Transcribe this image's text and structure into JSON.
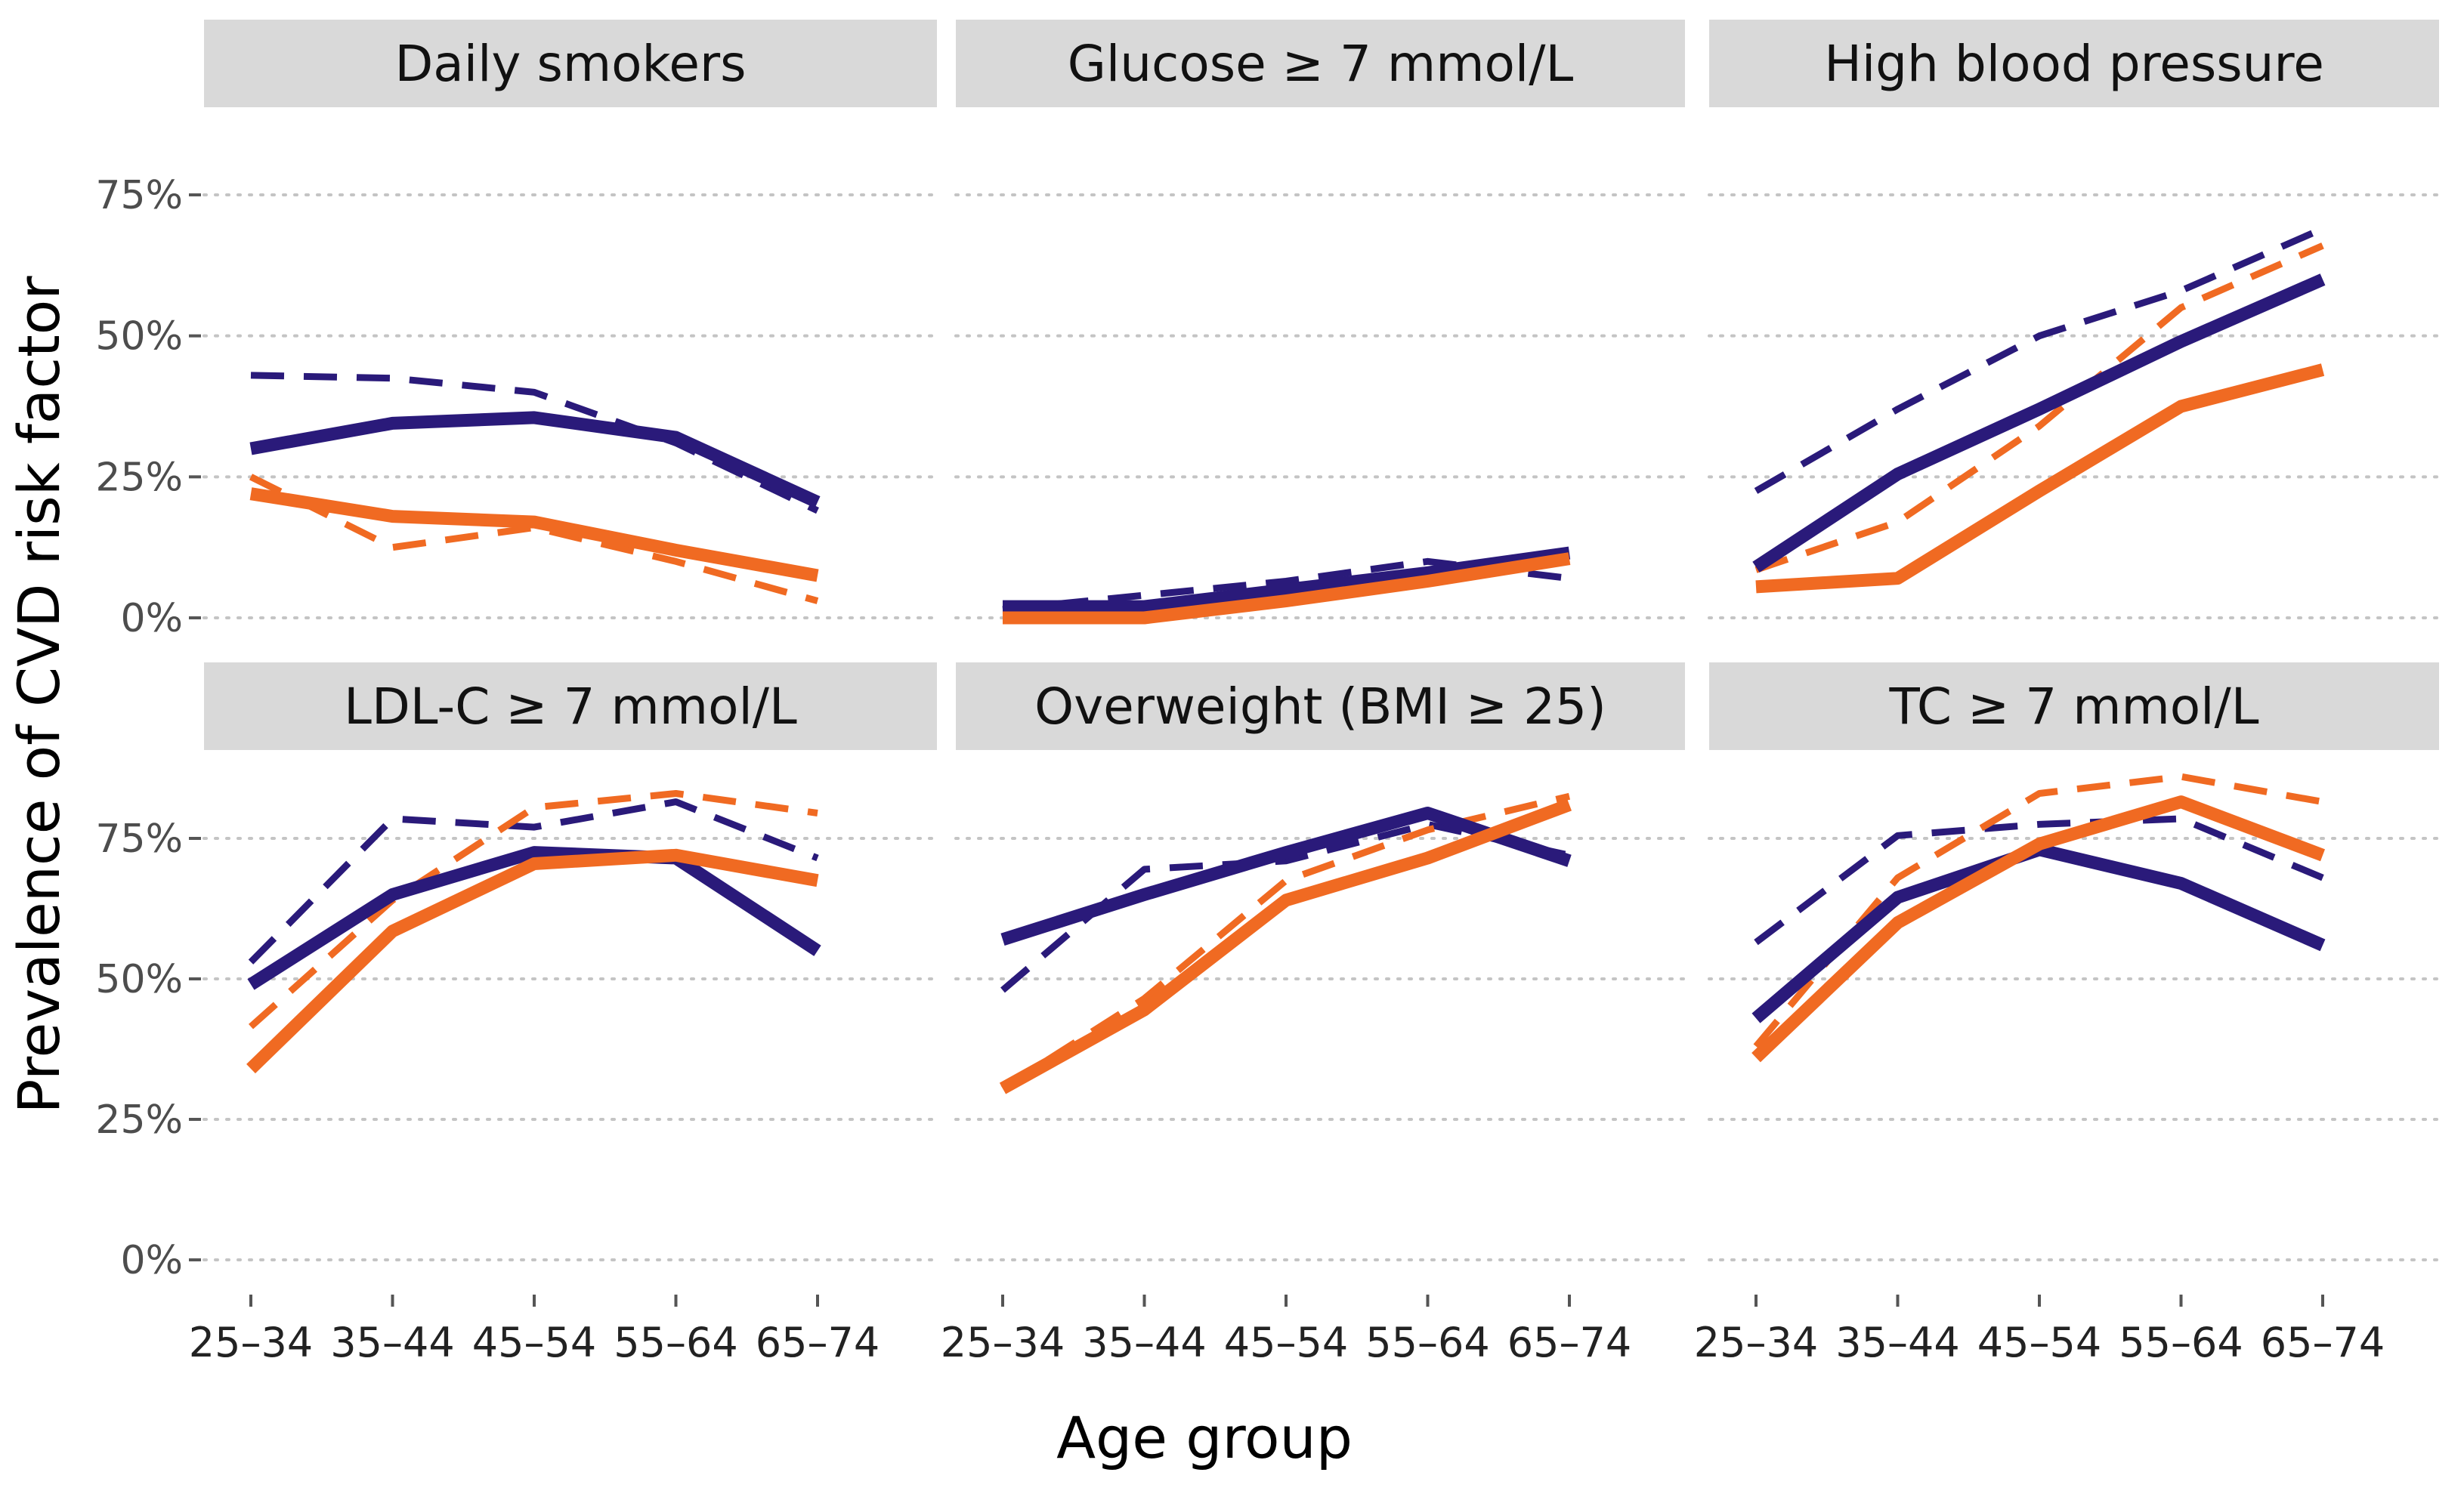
{
  "chart_data": {
    "type": "line",
    "xlabel": "Age group",
    "ylabel": "Prevalence of CVD risk factor",
    "categories": [
      "25–34",
      "35–44",
      "45–54",
      "55–64",
      "65–74"
    ],
    "y_ticks": [
      "0%",
      "25%",
      "50%",
      "75%"
    ],
    "y_tick_values": [
      0,
      25,
      50,
      75
    ],
    "ylim": [
      -8,
      82
    ],
    "grid": "horizontal dotted",
    "colors": {
      "dark": "#2a1a7a",
      "orange": "#f06a22",
      "strip": "#d9d9d9"
    },
    "panels": [
      {
        "title": "Daily smokers",
        "series": [
          {
            "name": "dark-solid",
            "color": "dark",
            "style": "solid",
            "values": [
              30,
              34.5,
              35.5,
              32,
              20.5
            ]
          },
          {
            "name": "dark-dashed",
            "color": "dark",
            "style": "dashed",
            "values": [
              43,
              42.5,
              40,
              31,
              19
            ]
          },
          {
            "name": "orange-solid",
            "color": "orange",
            "style": "solid",
            "values": [
              22,
              18,
              17,
              12,
              7.5
            ]
          },
          {
            "name": "orange-dashed",
            "color": "orange",
            "style": "dashed",
            "values": [
              25,
              12.5,
              16,
              10,
              3
            ]
          }
        ]
      },
      {
        "title": "Glucose ≥ 7 mmol/L",
        "series": [
          {
            "name": "dark-solid",
            "color": "dark",
            "style": "solid",
            "values": [
              2,
              2,
              5,
              8,
              11.5
            ]
          },
          {
            "name": "dark-dashed",
            "color": "dark",
            "style": "dashed",
            "values": [
              1.5,
              4,
              6.5,
              10,
              7
            ]
          },
          {
            "name": "orange-solid",
            "color": "orange",
            "style": "solid",
            "values": [
              0,
              0,
              3,
              6.5,
              10.5
            ]
          },
          {
            "name": "orange-dashed",
            "color": "orange",
            "style": "dashed",
            "values": [
              0.5,
              1,
              3.5,
              7.5,
              10
            ]
          }
        ]
      },
      {
        "title": "High blood pressure",
        "series": [
          {
            "name": "dark-solid",
            "color": "dark",
            "style": "solid",
            "values": [
              9,
              25.5,
              37,
              49,
              60
            ]
          },
          {
            "name": "dark-dashed",
            "color": "dark",
            "style": "dashed",
            "values": [
              22.5,
              37,
              50,
              58,
              69
            ]
          },
          {
            "name": "orange-solid",
            "color": "orange",
            "style": "solid",
            "values": [
              5.5,
              7,
              22.5,
              37.5,
              44
            ]
          },
          {
            "name": "orange-dashed",
            "color": "orange",
            "style": "dashed",
            "values": [
              8.5,
              17,
              34,
              55,
              66
            ]
          }
        ]
      },
      {
        "title": "LDL-C ≥ 7 mmol/L",
        "series": [
          {
            "name": "dark-solid",
            "color": "dark",
            "style": "solid",
            "values": [
              49,
              65,
              72.5,
              71.5,
              55
            ]
          },
          {
            "name": "dark-dashed",
            "color": "dark",
            "style": "dashed",
            "values": [
              53,
              78.5,
              77,
              81.5,
              71.5
            ]
          },
          {
            "name": "orange-solid",
            "color": "orange",
            "style": "solid",
            "values": [
              34,
              58.5,
              70.5,
              72,
              67.5
            ]
          },
          {
            "name": "orange-dashed",
            "color": "orange",
            "style": "dashed",
            "values": [
              41.5,
              64,
              80.5,
              83,
              79.5
            ]
          }
        ]
      },
      {
        "title": "Overweight (BMI ≥ 25)",
        "series": [
          {
            "name": "dark-solid",
            "color": "dark",
            "style": "solid",
            "values": [
              57,
              65,
              72.5,
              79.5,
              71
            ]
          },
          {
            "name": "dark-dashed",
            "color": "dark",
            "style": "dashed",
            "values": [
              48,
              69.5,
              71,
              77.5,
              72
            ]
          },
          {
            "name": "orange-solid",
            "color": "orange",
            "style": "solid",
            "values": [
              30.5,
              44.5,
              64,
              71.5,
              81
            ]
          },
          {
            "name": "orange-dashed",
            "color": "orange",
            "style": "dashed",
            "values": [
              30.5,
              46.5,
              67.5,
              76.5,
              82.5
            ]
          }
        ]
      },
      {
        "title": "TC ≥ 7 mmol/L",
        "series": [
          {
            "name": "dark-solid",
            "color": "dark",
            "style": "solid",
            "values": [
              43,
              64.5,
              73,
              67,
              56
            ]
          },
          {
            "name": "dark-dashed",
            "color": "dark",
            "style": "dashed",
            "values": [
              56.5,
              75.5,
              77.5,
              78.5,
              68
            ]
          },
          {
            "name": "orange-solid",
            "color": "orange",
            "style": "solid",
            "values": [
              36,
              60,
              74,
              81.5,
              72
            ]
          },
          {
            "name": "orange-dashed",
            "color": "orange",
            "style": "dashed",
            "values": [
              38,
              68,
              83,
              86,
              81.5
            ]
          }
        ]
      }
    ]
  }
}
